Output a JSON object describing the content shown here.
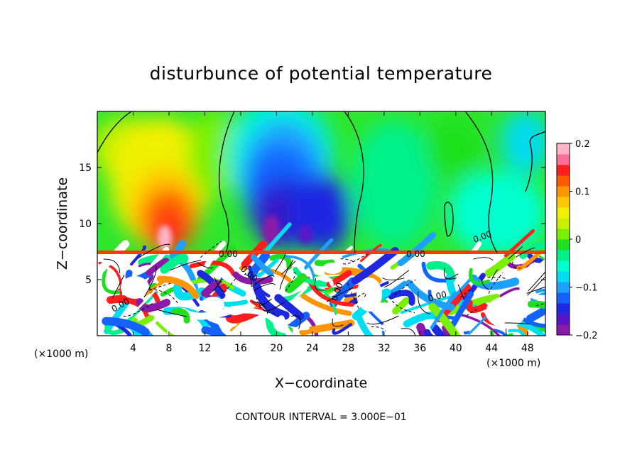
{
  "chart_data": {
    "type": "heatmap",
    "title": "disturbunce of potential temperature",
    "xlabel": "X−coordinate",
    "ylabel": "Z−coordinate",
    "x_unit_left": "(×1000 m)",
    "x_unit_right": "(×1000 m)",
    "xlim": [
      0,
      50
    ],
    "ylim": [
      0,
      20
    ],
    "x_ticks": [
      4,
      8,
      12,
      16,
      20,
      24,
      28,
      32,
      36,
      40,
      44,
      48
    ],
    "y_ticks": [
      5,
      10,
      15
    ],
    "colorbar": {
      "range": [
        -0.2,
        0.2
      ],
      "tick_values": [
        0.2,
        0.1,
        0,
        -0.1,
        -0.2
      ],
      "tick_labels": [
        "0.2",
        "0.1",
        "0",
        "−0.1",
        "−0.2"
      ],
      "colors": [
        "#8a1aa8",
        "#5a14c8",
        "#1e28e0",
        "#1463ff",
        "#1ea0ff",
        "#00dcf0",
        "#00ffd0",
        "#00f08c",
        "#1ee01e",
        "#78f000",
        "#c8f000",
        "#f0f000",
        "#ffc800",
        "#ff9600",
        "#ff5a00",
        "#ff1e1e",
        "#ff6e96",
        "#ffb4c8"
      ]
    },
    "contour_labels": [
      "0.00",
      "0.00",
      "0.00",
      "0.00",
      "0.00",
      "0.00",
      "0.00",
      "0.00"
    ],
    "footer": "CONTOUR INTERVAL = 3.000E−01",
    "field_description": [
      {
        "kind": "warm-anomaly",
        "x": 8,
        "z": 10,
        "value": 0.2
      },
      {
        "kind": "cold-anomaly",
        "x": 21,
        "z": 11,
        "value": -0.2
      },
      {
        "kind": "near-zero",
        "x": 30,
        "z": 14,
        "value": 0.0
      },
      {
        "kind": "near-zero",
        "x": 44,
        "z": 12,
        "value": -0.02
      },
      {
        "kind": "turbulent-layer",
        "z_top": 7.5,
        "value_range": [
          -0.2,
          0.2
        ]
      }
    ]
  }
}
